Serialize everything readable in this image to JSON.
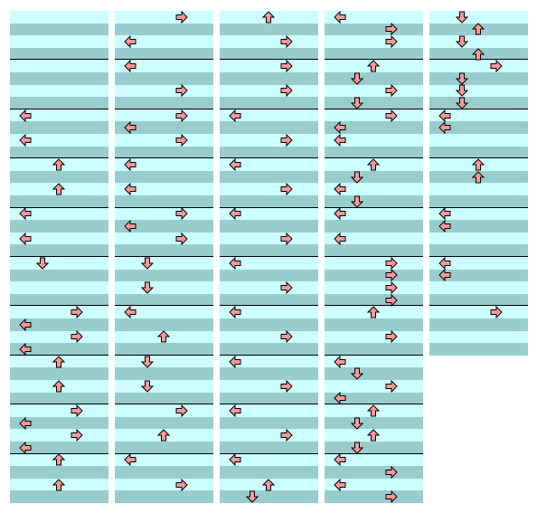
{
  "colors": {
    "page_background": "#ffffff",
    "stripe_light": "#ccffff",
    "stripe_dark": "#99cccc",
    "measure_line": "#000000",
    "arrow_fill": "#ff9999",
    "arrow_stroke": "#000000"
  },
  "chart_meta": {
    "rows_per_measure": 4,
    "lanes": [
      "left",
      "down",
      "up",
      "right"
    ]
  },
  "columns": [
    {
      "measure_count": 10,
      "notes": [
        {
          "beat": 8,
          "dir": "left"
        },
        {
          "beat": 10,
          "dir": "left"
        },
        {
          "beat": 12,
          "dir": "up"
        },
        {
          "beat": 14,
          "dir": "up"
        },
        {
          "beat": 16,
          "dir": "left"
        },
        {
          "beat": 18,
          "dir": "left"
        },
        {
          "beat": 20,
          "dir": "down"
        },
        {
          "beat": 24,
          "dir": "right"
        },
        {
          "beat": 25,
          "dir": "left"
        },
        {
          "beat": 26,
          "dir": "right"
        },
        {
          "beat": 27,
          "dir": "left"
        },
        {
          "beat": 28,
          "dir": "up"
        },
        {
          "beat": 30,
          "dir": "up"
        },
        {
          "beat": 32,
          "dir": "right"
        },
        {
          "beat": 33,
          "dir": "left"
        },
        {
          "beat": 34,
          "dir": "right"
        },
        {
          "beat": 35,
          "dir": "left"
        },
        {
          "beat": 36,
          "dir": "up"
        },
        {
          "beat": 38,
          "dir": "up"
        }
      ]
    },
    {
      "measure_count": 10,
      "notes": [
        {
          "beat": 0,
          "dir": "right"
        },
        {
          "beat": 2,
          "dir": "left"
        },
        {
          "beat": 4,
          "dir": "left"
        },
        {
          "beat": 6,
          "dir": "right"
        },
        {
          "beat": 8,
          "dir": "right"
        },
        {
          "beat": 9,
          "dir": "left"
        },
        {
          "beat": 10,
          "dir": "right"
        },
        {
          "beat": 12,
          "dir": "left"
        },
        {
          "beat": 14,
          "dir": "left"
        },
        {
          "beat": 16,
          "dir": "right"
        },
        {
          "beat": 17,
          "dir": "left"
        },
        {
          "beat": 18,
          "dir": "right"
        },
        {
          "beat": 20,
          "dir": "down"
        },
        {
          "beat": 22,
          "dir": "down"
        },
        {
          "beat": 24,
          "dir": "left"
        },
        {
          "beat": 26,
          "dir": "up"
        },
        {
          "beat": 28,
          "dir": "down"
        },
        {
          "beat": 30,
          "dir": "down"
        },
        {
          "beat": 32,
          "dir": "right"
        },
        {
          "beat": 34,
          "dir": "up"
        },
        {
          "beat": 36,
          "dir": "left"
        },
        {
          "beat": 38,
          "dir": "right"
        }
      ]
    },
    {
      "measure_count": 10,
      "notes": [
        {
          "beat": 0,
          "dir": "up"
        },
        {
          "beat": 2,
          "dir": "right"
        },
        {
          "beat": 4,
          "dir": "right"
        },
        {
          "beat": 6,
          "dir": "right"
        },
        {
          "beat": 8,
          "dir": "left"
        },
        {
          "beat": 10,
          "dir": "right"
        },
        {
          "beat": 12,
          "dir": "left"
        },
        {
          "beat": 14,
          "dir": "right"
        },
        {
          "beat": 16,
          "dir": "left"
        },
        {
          "beat": 18,
          "dir": "right"
        },
        {
          "beat": 20,
          "dir": "left"
        },
        {
          "beat": 22,
          "dir": "right"
        },
        {
          "beat": 24,
          "dir": "left"
        },
        {
          "beat": 26,
          "dir": "right"
        },
        {
          "beat": 28,
          "dir": "left"
        },
        {
          "beat": 30,
          "dir": "right"
        },
        {
          "beat": 32,
          "dir": "left"
        },
        {
          "beat": 34,
          "dir": "right"
        },
        {
          "beat": 36,
          "dir": "left"
        },
        {
          "beat": 38,
          "dir": "up"
        },
        {
          "beat": 39,
          "dir": "down"
        }
      ]
    },
    {
      "measure_count": 10,
      "notes": [
        {
          "beat": 0,
          "dir": "left"
        },
        {
          "beat": 1,
          "dir": "right"
        },
        {
          "beat": 2,
          "dir": "right"
        },
        {
          "beat": 4,
          "dir": "up"
        },
        {
          "beat": 5,
          "dir": "down"
        },
        {
          "beat": 6,
          "dir": "right"
        },
        {
          "beat": 7,
          "dir": "down"
        },
        {
          "beat": 8,
          "dir": "right"
        },
        {
          "beat": 9,
          "dir": "left"
        },
        {
          "beat": 10,
          "dir": "left"
        },
        {
          "beat": 12,
          "dir": "up"
        },
        {
          "beat": 13,
          "dir": "down"
        },
        {
          "beat": 14,
          "dir": "left"
        },
        {
          "beat": 15,
          "dir": "down"
        },
        {
          "beat": 16,
          "dir": "left"
        },
        {
          "beat": 18,
          "dir": "left"
        },
        {
          "beat": 20,
          "dir": "right"
        },
        {
          "beat": 21,
          "dir": "right"
        },
        {
          "beat": 22,
          "dir": "right"
        },
        {
          "beat": 23,
          "dir": "right"
        },
        {
          "beat": 24,
          "dir": "up"
        },
        {
          "beat": 26,
          "dir": "right"
        },
        {
          "beat": 28,
          "dir": "left"
        },
        {
          "beat": 29,
          "dir": "down"
        },
        {
          "beat": 30,
          "dir": "right"
        },
        {
          "beat": 31,
          "dir": "left"
        },
        {
          "beat": 32,
          "dir": "up"
        },
        {
          "beat": 33,
          "dir": "down"
        },
        {
          "beat": 34,
          "dir": "up"
        },
        {
          "beat": 35,
          "dir": "down"
        },
        {
          "beat": 36,
          "dir": "left"
        },
        {
          "beat": 37,
          "dir": "right"
        },
        {
          "beat": 38,
          "dir": "left"
        },
        {
          "beat": 39,
          "dir": "right"
        }
      ]
    },
    {
      "measure_count": 7,
      "notes": [
        {
          "beat": 0,
          "dir": "down"
        },
        {
          "beat": 1,
          "dir": "up"
        },
        {
          "beat": 2,
          "dir": "down"
        },
        {
          "beat": 3,
          "dir": "up"
        },
        {
          "beat": 4,
          "dir": "right"
        },
        {
          "beat": 5,
          "dir": "down"
        },
        {
          "beat": 6,
          "dir": "down"
        },
        {
          "beat": 7,
          "dir": "down"
        },
        {
          "beat": 8,
          "dir": "left"
        },
        {
          "beat": 9,
          "dir": "left"
        },
        {
          "beat": 12,
          "dir": "up"
        },
        {
          "beat": 13,
          "dir": "up"
        },
        {
          "beat": 16,
          "dir": "left"
        },
        {
          "beat": 17,
          "dir": "left"
        },
        {
          "beat": 20,
          "dir": "left"
        },
        {
          "beat": 21,
          "dir": "left"
        },
        {
          "beat": 24,
          "dir": "right"
        }
      ]
    }
  ]
}
